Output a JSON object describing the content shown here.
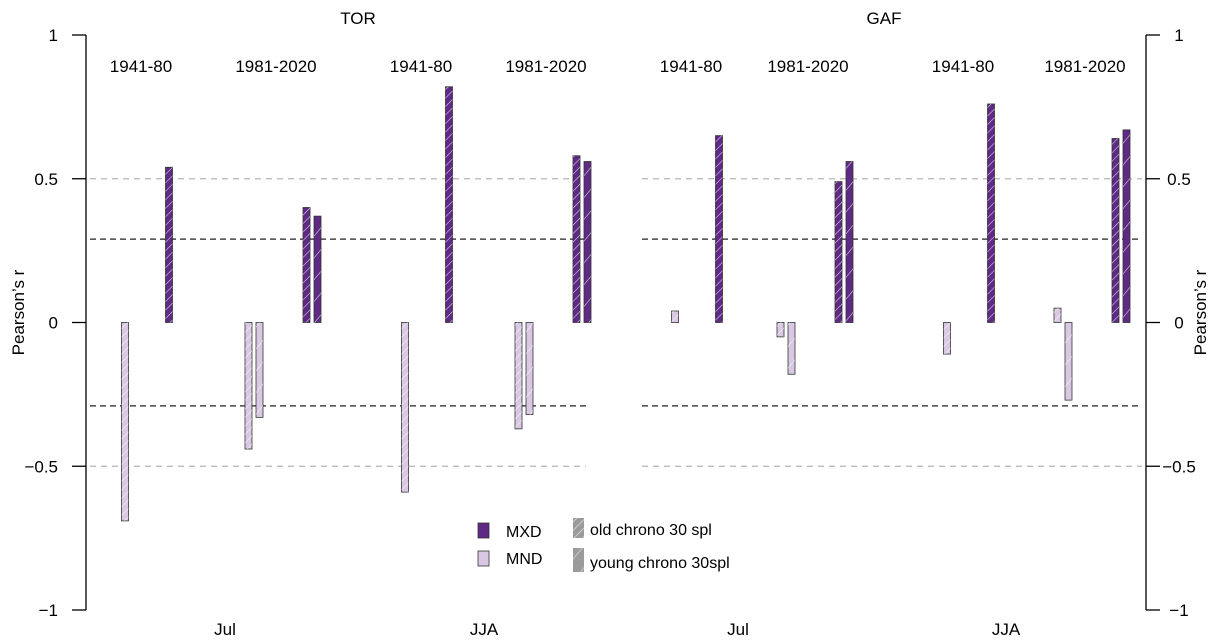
{
  "chart_data": {
    "type": "bar",
    "ylabel_left": "Pearson’s r",
    "ylabel_right": "Pearson’s r",
    "ylim": [
      -1,
      1
    ],
    "yticks": [
      -1,
      -0.5,
      0,
      0.5,
      1
    ],
    "ytick_labels": [
      "−1",
      "−0.5",
      "0",
      "0.5",
      "1"
    ],
    "reference_lines": {
      "light_dashed": [
        0.5,
        -0.5
      ],
      "dark_dashed": [
        0.29,
        -0.29
      ]
    },
    "colors": {
      "MXD": "#5e2a84",
      "MND": "#d9c8e3",
      "hatch": "#ffffff",
      "outline": "#333333"
    },
    "legend": {
      "MXD": "MXD",
      "MND": "MND",
      "old": "old chrono 30 spl",
      "young": "young chrono 30spl"
    },
    "panels": [
      {
        "title": "TOR",
        "groups": [
          {
            "label": "Jul",
            "periods": [
              {
                "label": "1941-80",
                "MND": {
                  "old": -0.69
                },
                "MXD": {
                  "old": 0.54
                }
              },
              {
                "label": "1981-2020",
                "MND": {
                  "old": -0.44,
                  "young": -0.33
                },
                "MXD": {
                  "old": 0.4,
                  "young": 0.37
                }
              }
            ]
          },
          {
            "label": "JJA",
            "periods": [
              {
                "label": "1941-80",
                "MND": {
                  "old": -0.59
                },
                "MXD": {
                  "old": 0.82
                }
              },
              {
                "label": "1981-2020",
                "MND": {
                  "old": -0.37,
                  "young": -0.32
                },
                "MXD": {
                  "old": 0.58,
                  "young": 0.56
                }
              }
            ]
          }
        ]
      },
      {
        "title": "GAF",
        "groups": [
          {
            "label": "Jul",
            "periods": [
              {
                "label": "1941-80",
                "MND": {
                  "old": 0.04
                },
                "MXD": {
                  "old": 0.65
                }
              },
              {
                "label": "1981-2020",
                "MND": {
                  "old": -0.05,
                  "young": -0.18
                },
                "MXD": {
                  "old": 0.49,
                  "young": 0.56
                }
              }
            ]
          },
          {
            "label": "JJA",
            "periods": [
              {
                "label": "1941-80",
                "MND": {
                  "old": -0.11
                },
                "MXD": {
                  "old": 0.76
                }
              },
              {
                "label": "1981-2020",
                "MND": {
                  "old": 0.05,
                  "young": -0.27
                },
                "MXD": {
                  "old": 0.64,
                  "young": 0.67
                }
              }
            ]
          }
        ]
      }
    ]
  }
}
